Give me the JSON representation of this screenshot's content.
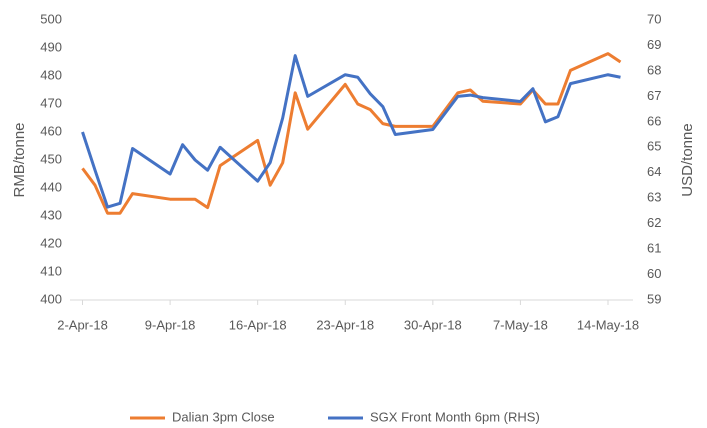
{
  "chart_data": {
    "type": "line",
    "y_label": "RMB/tonne",
    "y2_label": "USD/tonne",
    "x": [
      "2018-04-02",
      "2018-04-03",
      "2018-04-04",
      "2018-04-05",
      "2018-04-06",
      "2018-04-09",
      "2018-04-10",
      "2018-04-11",
      "2018-04-12",
      "2018-04-13",
      "2018-04-16",
      "2018-04-17",
      "2018-04-18",
      "2018-04-19",
      "2018-04-20",
      "2018-04-23",
      "2018-04-24",
      "2018-04-25",
      "2018-04-26",
      "2018-04-27",
      "2018-04-30",
      "2018-05-02",
      "2018-05-03",
      "2018-05-04",
      "2018-05-07",
      "2018-05-08",
      "2018-05-09",
      "2018-05-10",
      "2018-05-11",
      "2018-05-14",
      "2018-05-15"
    ],
    "series": [
      {
        "name": "Dalian 3pm Close",
        "color": "#ed7d31",
        "axis": "y",
        "values": [
          447,
          441,
          431,
          431,
          438,
          436,
          436,
          436,
          433,
          448,
          457,
          441,
          449,
          474,
          461,
          477,
          470,
          468,
          463,
          462,
          462,
          474,
          475,
          471,
          470,
          475,
          470,
          470,
          482,
          488,
          485
        ]
      },
      {
        "name": "SGX Front Month 6pm (RHS)",
        "color": "#4472c4",
        "axis": "y2",
        "values": [
          65.6,
          64.1,
          62.65,
          62.8,
          64.95,
          63.95,
          65.1,
          64.5,
          64.1,
          65.0,
          63.67,
          64.4,
          66.15,
          68.6,
          67.0,
          67.85,
          67.75,
          67.1,
          66.6,
          65.5,
          65.7,
          67.0,
          67.05,
          66.95,
          66.8,
          67.3,
          66.0,
          66.2,
          67.5,
          67.85,
          67.75
        ]
      }
    ],
    "xlim": [
      "2018-04-01",
      "2018-05-16"
    ],
    "xticks": [
      {
        "value": "2018-04-02",
        "label": "2-Apr-18"
      },
      {
        "value": "2018-04-09",
        "label": "9-Apr-18"
      },
      {
        "value": "2018-04-16",
        "label": "16-Apr-18"
      },
      {
        "value": "2018-04-23",
        "label": "23-Apr-18"
      },
      {
        "value": "2018-04-30",
        "label": "30-Apr-18"
      },
      {
        "value": "2018-05-07",
        "label": "7-May-18"
      },
      {
        "value": "2018-05-14",
        "label": "14-May-18"
      }
    ],
    "ylim": [
      400,
      500
    ],
    "yticks": [
      400,
      410,
      420,
      430,
      440,
      450,
      460,
      470,
      480,
      490,
      500
    ],
    "y2lim": [
      59,
      70
    ],
    "y2ticks": [
      59,
      60,
      61,
      62,
      63,
      64,
      65,
      66,
      67,
      68,
      69,
      70
    ],
    "legend": "bottom"
  }
}
